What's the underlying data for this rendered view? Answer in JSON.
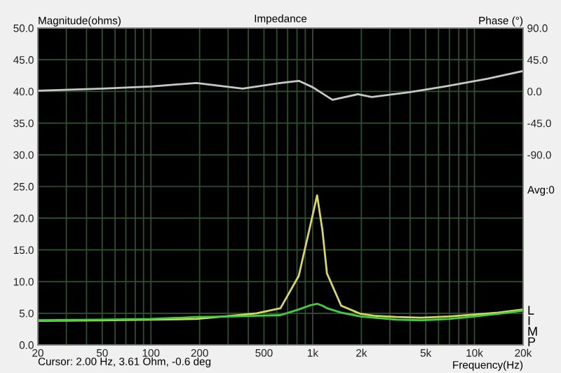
{
  "chart_data": {
    "type": "line",
    "title": "Impedance",
    "xlabel": "Frequency(Hz)",
    "ylabel": "Magnitude(ohms)",
    "y2label": "Phase (°)",
    "x": [
      20,
      50,
      100,
      191,
      315,
      450,
      632,
      820,
      950,
      1065,
      1150,
      1225,
      1500,
      1980,
      2400,
      3300,
      4690,
      7000,
      10000,
      14000,
      20000
    ],
    "series": [
      {
        "color": "#d8d860",
        "values": [
          3.8,
          3.9,
          4.0,
          4.1,
          4.6,
          5.0,
          5.8,
          10.9,
          18.0,
          23.6,
          18.0,
          11.3,
          6.2,
          4.9,
          4.6,
          4.4,
          4.3,
          4.5,
          4.8,
          5.1,
          5.6
        ]
      },
      {
        "color": "#40d040",
        "values": [
          3.9,
          4.0,
          4.1,
          4.4,
          4.5,
          4.6,
          4.7,
          5.6,
          6.2,
          6.5,
          6.2,
          5.8,
          5.1,
          4.5,
          4.3,
          4.0,
          3.9,
          4.1,
          4.5,
          4.9,
          5.4
        ]
      },
      {
        "color": "#c8c8c8",
        "axis": "y2",
        "x": [
          20,
          50,
          100,
          191,
          369,
          632,
          820,
          1000,
          1325,
          1900,
          2320,
          4000,
          6550,
          12000,
          20000
        ],
        "values": [
          1,
          4,
          7,
          12,
          4,
          12,
          15,
          6,
          -12,
          -4,
          -8,
          -1,
          7,
          18,
          29
        ]
      }
    ],
    "xlim": [
      20,
      20000
    ],
    "xticks": [
      20,
      50,
      100,
      200,
      500,
      {
        "value": 1000,
        "label": "1k"
      },
      {
        "value": 2000,
        "label": "2k"
      },
      {
        "value": 5000,
        "label": "5k"
      },
      {
        "value": 10000,
        "label": "10k"
      },
      {
        "value": 20000,
        "label": "20k"
      }
    ],
    "ylim": [
      0,
      50
    ],
    "yticks": [
      {
        "value": 0,
        "label": "0.0"
      },
      {
        "value": 5,
        "label": "5.0"
      },
      {
        "value": 10,
        "label": "10.0"
      },
      {
        "value": 15,
        "label": "15.0"
      },
      {
        "value": 20,
        "label": "20.0"
      },
      {
        "value": 25,
        "label": "25.0"
      },
      {
        "value": 30,
        "label": "30.0"
      },
      {
        "value": 35,
        "label": "35.0"
      },
      {
        "value": 40,
        "label": "40.0"
      },
      {
        "value": 45,
        "label": "45.0"
      },
      {
        "value": 50,
        "label": "50.0"
      }
    ],
    "y2lim": [
      -360,
      90
    ],
    "y2ticks": [
      {
        "value": -90,
        "label": "-90.0"
      },
      {
        "value": -45,
        "label": "-45.0"
      },
      {
        "value": 0,
        "label": "0.0"
      },
      {
        "value": 45,
        "label": "45.0"
      },
      {
        "value": 90,
        "label": "90.0"
      }
    ],
    "log": "x",
    "grid": true,
    "annotations": [
      "Cursor: 2.00 Hz, 3.61 Ohm, -0.6 deg",
      "Avg:0",
      "L",
      "I",
      "M",
      "P"
    ]
  }
}
